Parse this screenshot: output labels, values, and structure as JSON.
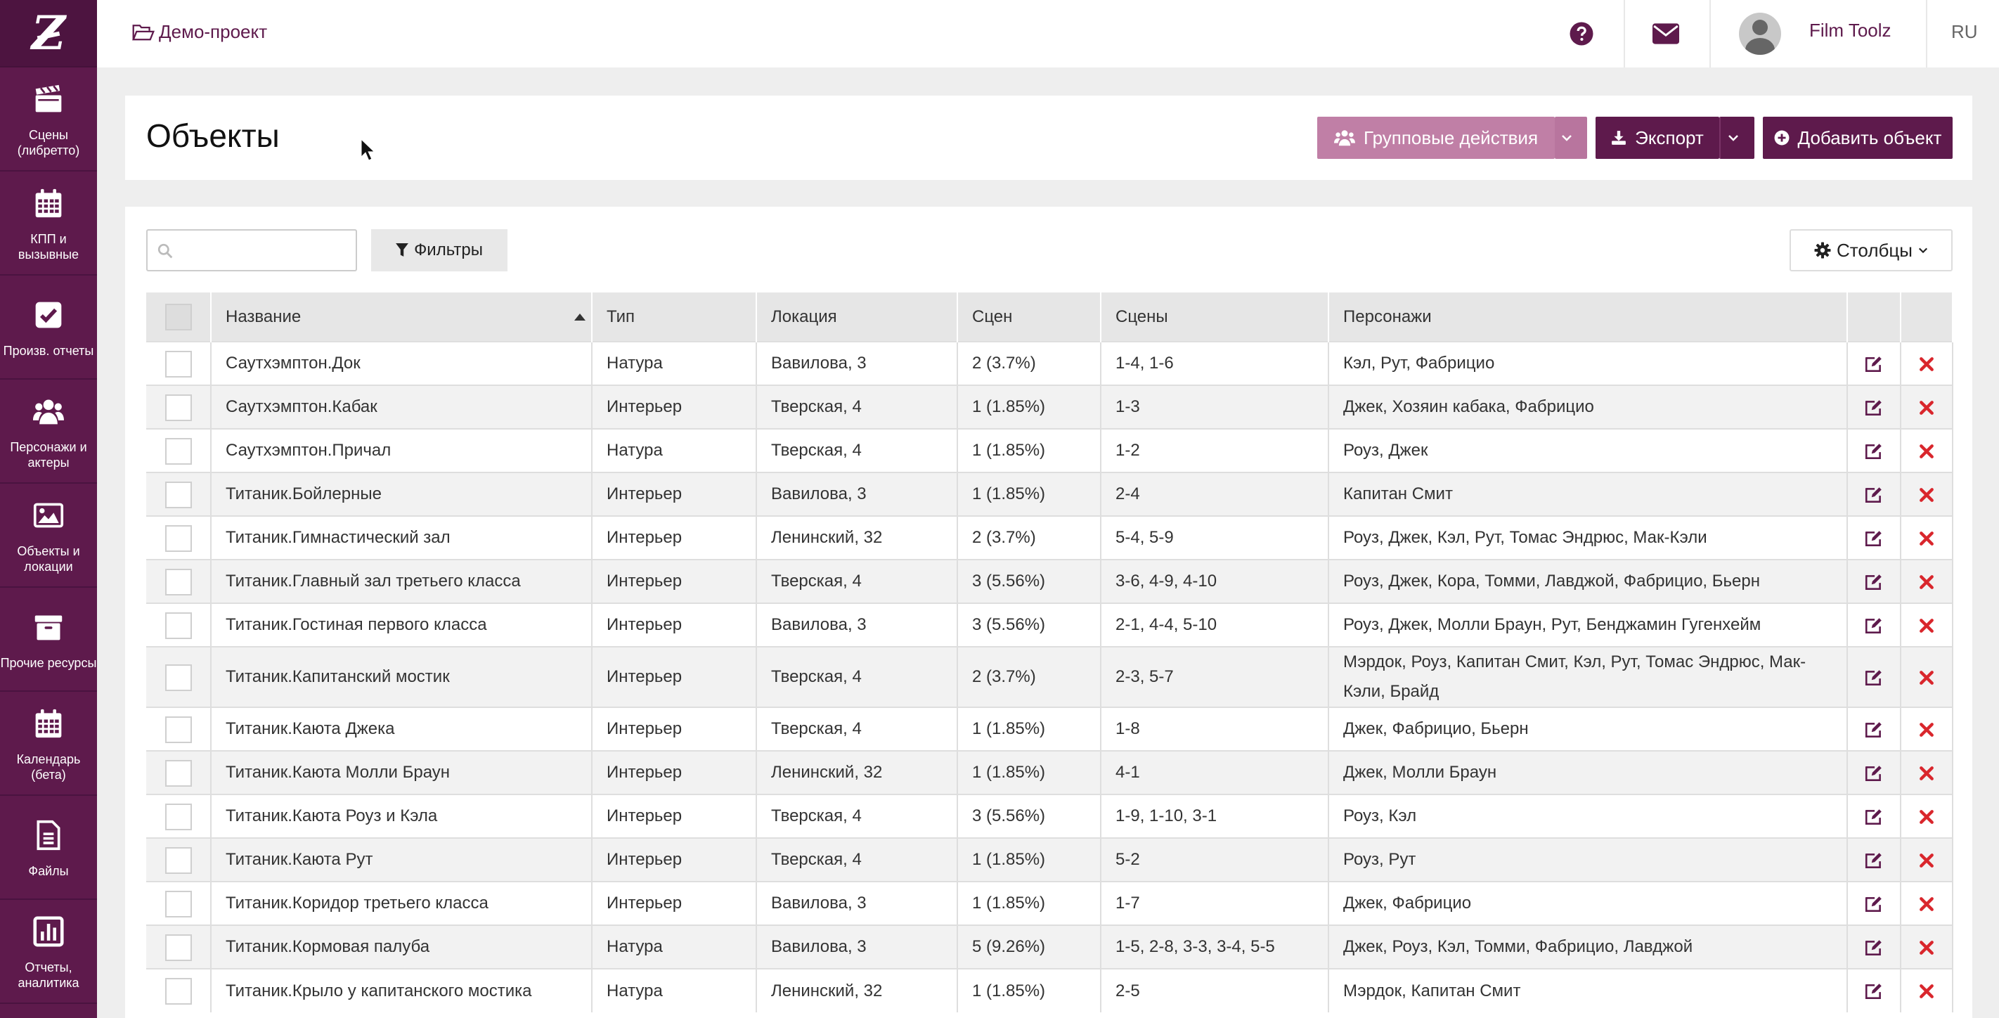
{
  "sidebar": {
    "items": [
      {
        "label": "Сцены (либретто)",
        "icon": "clapperboard-icon"
      },
      {
        "label": "КПП и вызывные",
        "icon": "calendar-icon"
      },
      {
        "label": "Произв. отчеты",
        "icon": "checkbox-icon"
      },
      {
        "label": "Персонажи и актеры",
        "icon": "users-icon"
      },
      {
        "label": "Объекты и локации",
        "icon": "image-icon"
      },
      {
        "label": "Прочие ресурсы",
        "icon": "archive-icon"
      },
      {
        "label": "Календарь (бета)",
        "icon": "calendar-icon"
      },
      {
        "label": "Файлы",
        "icon": "file-icon"
      },
      {
        "label": "Отчеты, аналитика",
        "icon": "bar-chart-icon"
      }
    ]
  },
  "header": {
    "project": "Демо-проект",
    "user": "Film Toolz",
    "lang": "RU"
  },
  "page": {
    "title": "Объекты",
    "group_actions": "Групповые действия",
    "export": "Экспорт",
    "add": "Добавить объект"
  },
  "toolbar": {
    "search_placeholder": "",
    "filters": "Фильтры",
    "columns": "Столбцы"
  },
  "table": {
    "columns": [
      "Название",
      "Тип",
      "Локация",
      "Сцен",
      "Сцены",
      "Персонажи"
    ],
    "rows": [
      {
        "name": "Саутхэмптон.Док",
        "type": "Натура",
        "location": "Вавилова, 3",
        "count": "2 (3.7%)",
        "scenes": "1-4, 1-6",
        "characters": "Кэл, Рут, Фабрицио"
      },
      {
        "name": "Саутхэмптон.Кабак",
        "type": "Интерьер",
        "location": "Тверская, 4",
        "count": "1 (1.85%)",
        "scenes": "1-3",
        "characters": "Джек, Хозяин кабака, Фабрицио"
      },
      {
        "name": "Саутхэмптон.Причал",
        "type": "Натура",
        "location": "Тверская, 4",
        "count": "1 (1.85%)",
        "scenes": "1-2",
        "characters": "Роуз, Джек"
      },
      {
        "name": "Титаник.Бойлерные",
        "type": "Интерьер",
        "location": "Вавилова, 3",
        "count": "1 (1.85%)",
        "scenes": "2-4",
        "characters": "Капитан Смит"
      },
      {
        "name": "Титаник.Гимнастический зал",
        "type": "Интерьер",
        "location": "Ленинский, 32",
        "count": "2 (3.7%)",
        "scenes": "5-4, 5-9",
        "characters": "Роуз, Джек, Кэл, Рут, Томас Эндрюс, Мак-Кэли"
      },
      {
        "name": "Титаник.Главный зал третьего класса",
        "type": "Интерьер",
        "location": "Тверская, 4",
        "count": "3 (5.56%)",
        "scenes": "3-6, 4-9, 4-10",
        "characters": "Роуз, Джек, Кора, Томми, Лавджой, Фабрицио, Бьерн"
      },
      {
        "name": "Титаник.Гостиная первого класса",
        "type": "Интерьер",
        "location": "Вавилова, 3",
        "count": "3 (5.56%)",
        "scenes": "2-1, 4-4, 5-10",
        "characters": "Роуз, Джек, Молли Браун, Рут, Бенджамин Гугенхейм"
      },
      {
        "name": "Титаник.Капитанский мостик",
        "type": "Интерьер",
        "location": "Тверская, 4",
        "count": "2 (3.7%)",
        "scenes": "2-3, 5-7",
        "characters": "Мэрдок, Роуз, Капитан Смит, Кэл, Рут, Томас Эндрюс, Мак-Кэли, Брайд"
      },
      {
        "name": "Титаник.Каюта Джека",
        "type": "Интерьер",
        "location": "Тверская, 4",
        "count": "1 (1.85%)",
        "scenes": "1-8",
        "characters": "Джек, Фабрицио, Бьерн"
      },
      {
        "name": "Титаник.Каюта Молли Браун",
        "type": "Интерьер",
        "location": "Ленинский, 32",
        "count": "1 (1.85%)",
        "scenes": "4-1",
        "characters": "Джек, Молли Браун"
      },
      {
        "name": "Титаник.Каюта Роуз и Кэла",
        "type": "Интерьер",
        "location": "Тверская, 4",
        "count": "3 (5.56%)",
        "scenes": "1-9, 1-10, 3-1",
        "characters": "Роуз, Кэл"
      },
      {
        "name": "Титаник.Каюта Рут",
        "type": "Интерьер",
        "location": "Тверская, 4",
        "count": "1 (1.85%)",
        "scenes": "5-2",
        "characters": "Роуз, Рут"
      },
      {
        "name": "Титаник.Коридор третьего класса",
        "type": "Интерьер",
        "location": "Вавилова, 3",
        "count": "1 (1.85%)",
        "scenes": "1-7",
        "characters": "Джек, Фабрицио"
      },
      {
        "name": "Титаник.Кормовая палуба",
        "type": "Натура",
        "location": "Вавилова, 3",
        "count": "5 (9.26%)",
        "scenes": "1-5, 2-8, 3-3, 3-4, 5-5",
        "characters": "Джек, Роуз, Кэл, Томми, Фабрицио, Лавджой"
      },
      {
        "name": "Титаник.Крыло у капитанского мостика",
        "type": "Натура",
        "location": "Ленинский, 32",
        "count": "1 (1.85%)",
        "scenes": "2-5",
        "characters": "Мэрдок, Капитан Смит"
      }
    ]
  },
  "colors": {
    "brand": "#5e1a4c",
    "brand_light": "#c07fa6",
    "delete": "#d9262c"
  }
}
